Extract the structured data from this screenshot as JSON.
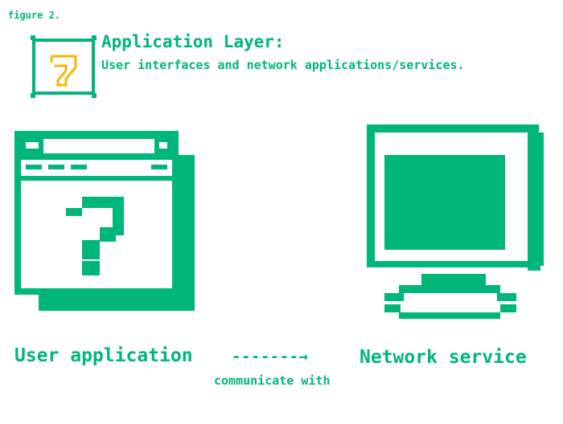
{
  "figure_label": "figure 2.",
  "layer": {
    "title": "Application Layer:",
    "description": "User interfaces and network applications/services.",
    "badge_icon": "seven-badge-icon",
    "badge_color": "#f2b705"
  },
  "nodes": {
    "left": {
      "label": "User application",
      "icon": "app-window-question-icon"
    },
    "right": {
      "label": "Network service",
      "icon": "monitor-icon"
    }
  },
  "connector": {
    "arrow": "-------→",
    "label": "communicate with"
  },
  "colors": {
    "accent": "#00b67a",
    "background": "#ffffff"
  }
}
